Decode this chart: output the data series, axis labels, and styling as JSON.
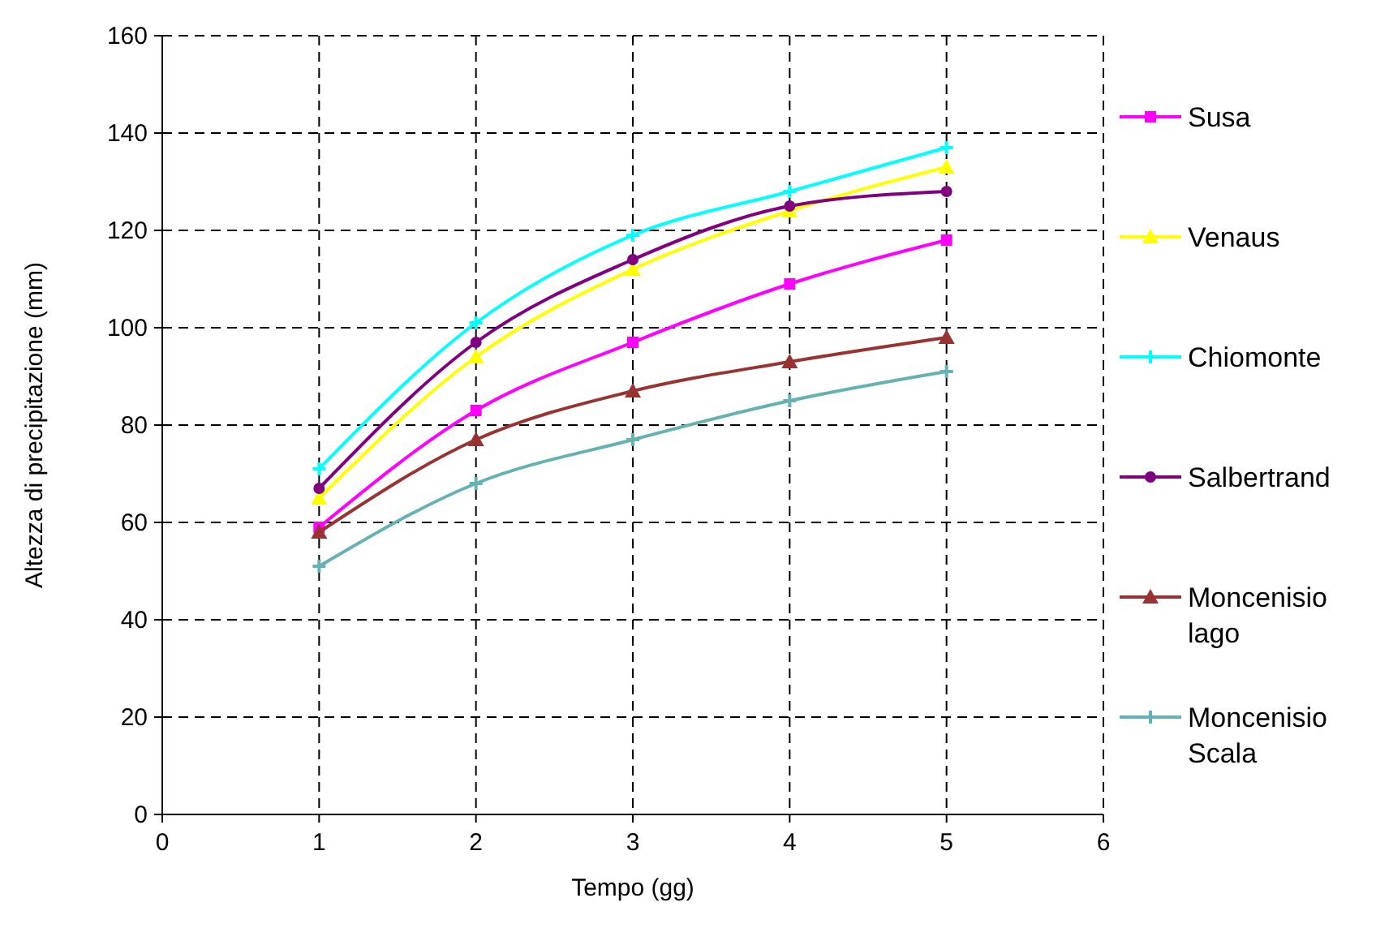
{
  "chart_data": {
    "type": "line",
    "xlabel": "Tempo (gg)",
    "ylabel": "Altezza di precipitazione (mm)",
    "x": [
      1,
      2,
      3,
      4,
      5
    ],
    "xlim": [
      0,
      6
    ],
    "xticks": [
      0,
      1,
      2,
      3,
      4,
      5,
      6
    ],
    "ylim": [
      0,
      160
    ],
    "yticks": [
      0,
      20,
      40,
      60,
      80,
      100,
      120,
      140,
      160
    ],
    "grid": true,
    "legend": "right",
    "series": [
      {
        "name": "Susa",
        "color": "#ff00ff",
        "marker": "square",
        "values": [
          59,
          83,
          97,
          109,
          118
        ]
      },
      {
        "name": "Venaus",
        "color": "#ffff00",
        "marker": "triangle",
        "values": [
          65,
          94,
          112,
          124,
          133
        ]
      },
      {
        "name": "Chiomonte",
        "color": "#00ffff",
        "marker": "cross",
        "values": [
          71,
          101,
          119,
          128,
          137
        ]
      },
      {
        "name": "Salbertrand",
        "color": "#800080",
        "marker": "circle",
        "values": [
          67,
          97,
          114,
          125,
          128
        ]
      },
      {
        "name": "Moncenisio lago",
        "color": "#993333",
        "marker": "triangle",
        "values": [
          58,
          77,
          87,
          93,
          98
        ]
      },
      {
        "name": "Moncenisio Scala",
        "color": "#66b2b2",
        "marker": "cross",
        "values": [
          51,
          68,
          77,
          85,
          91
        ]
      }
    ]
  }
}
